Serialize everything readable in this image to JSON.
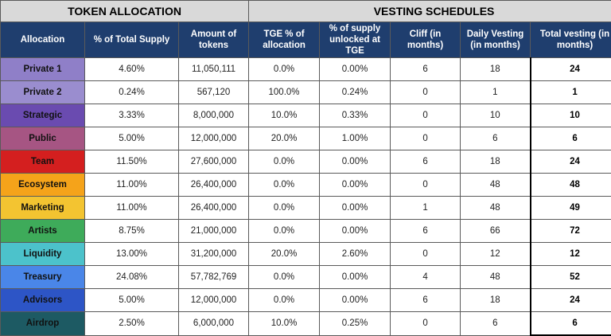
{
  "headers": {
    "token_allocation": "TOKEN ALLOCATION",
    "vesting_schedules": "VESTING SCHEDULES",
    "columns": [
      "Allocation",
      "% of Total Supply",
      "Amount of tokens",
      "TGE % of allocation",
      "% of supply unlocked at TGE",
      "Cliff (in months)",
      "Daily Vesting (in months)",
      "Total vesting (in months)"
    ]
  },
  "rows": [
    {
      "name": "Private 1",
      "color": "#8f7fc8",
      "pct": "4.60%",
      "amount": "11,050,111",
      "tge": "0.0%",
      "unlocked": "0.00%",
      "cliff": "6",
      "daily": "18",
      "total": "24"
    },
    {
      "name": "Private 2",
      "color": "#9a8dcf",
      "pct": "0.24%",
      "amount": "567,120",
      "tge": "100.0%",
      "unlocked": "0.24%",
      "cliff": "0",
      "daily": "1",
      "total": "1"
    },
    {
      "name": "Strategic",
      "color": "#6a4bb0",
      "pct": "3.33%",
      "amount": "8,000,000",
      "tge": "10.0%",
      "unlocked": "0.33%",
      "cliff": "0",
      "daily": "10",
      "total": "10"
    },
    {
      "name": "Public",
      "color": "#a65583",
      "pct": "5.00%",
      "amount": "12,000,000",
      "tge": "20.0%",
      "unlocked": "1.00%",
      "cliff": "0",
      "daily": "6",
      "total": "6"
    },
    {
      "name": "Team",
      "color": "#d41f1f",
      "pct": "11.50%",
      "amount": "27,600,000",
      "tge": "0.0%",
      "unlocked": "0.00%",
      "cliff": "6",
      "daily": "18",
      "total": "24"
    },
    {
      "name": "Ecosystem",
      "color": "#f5a31a",
      "pct": "11.00%",
      "amount": "26,400,000",
      "tge": "0.0%",
      "unlocked": "0.00%",
      "cliff": "0",
      "daily": "48",
      "total": "48"
    },
    {
      "name": "Marketing",
      "color": "#f3c431",
      "pct": "11.00%",
      "amount": "26,400,000",
      "tge": "0.0%",
      "unlocked": "0.00%",
      "cliff": "1",
      "daily": "48",
      "total": "49"
    },
    {
      "name": "Artists",
      "color": "#3eab5a",
      "pct": "8.75%",
      "amount": "21,000,000",
      "tge": "0.0%",
      "unlocked": "0.00%",
      "cliff": "6",
      "daily": "66",
      "total": "72"
    },
    {
      "name": "Liquidity",
      "color": "#4cc2cb",
      "pct": "13.00%",
      "amount": "31,200,000",
      "tge": "20.0%",
      "unlocked": "2.60%",
      "cliff": "0",
      "daily": "12",
      "total": "12"
    },
    {
      "name": "Treasury",
      "color": "#4a86e8",
      "pct": "24.08%",
      "amount": "57,782,769",
      "tge": "0.0%",
      "unlocked": "0.00%",
      "cliff": "4",
      "daily": "48",
      "total": "52"
    },
    {
      "name": "Advisors",
      "color": "#2d55c6",
      "pct": "5.00%",
      "amount": "12,000,000",
      "tge": "0.0%",
      "unlocked": "0.00%",
      "cliff": "6",
      "daily": "18",
      "total": "24"
    },
    {
      "name": "Airdrop",
      "color": "#1d5a63",
      "pct": "2.50%",
      "amount": "6,000,000",
      "tge": "10.0%",
      "unlocked": "0.25%",
      "cliff": "0",
      "daily": "6",
      "total": "6"
    }
  ]
}
